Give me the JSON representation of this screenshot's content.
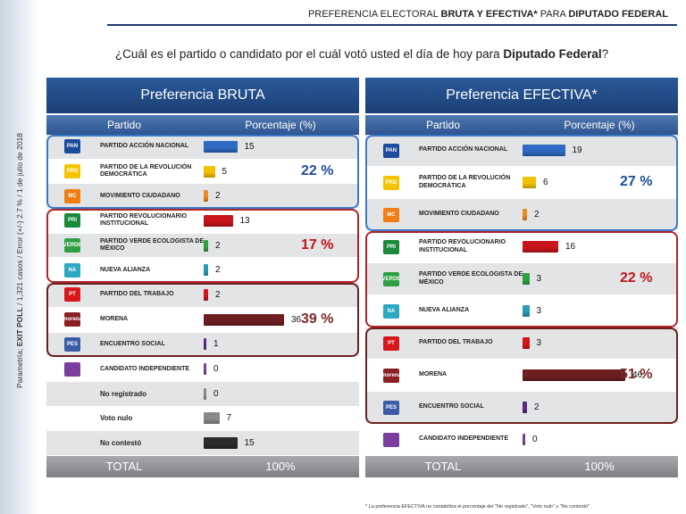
{
  "header": {
    "title_pre": "PREFERENCIA ELECTORAL ",
    "title_bold": "BRUTA Y EFECTIVA*",
    "title_mid": " PARA ",
    "title_bold2": "DIPUTADO FEDERAL"
  },
  "question": {
    "pre": "¿Cuál es el partido o candidato por el cuál votó usted el día de hoy para ",
    "bold": "Diputado Federal",
    "post": "?"
  },
  "side_note": {
    "pre": "Parametría; ",
    "bold": "EXIT POLL",
    "post": " / 1,321 casos / Error (+/-) 2.7 % / 1 de julio de 2018"
  },
  "colors": {
    "blue_box": "#3a7ac8",
    "red_box": "#b0232a",
    "maroon_box": "#6b1f1f",
    "pct_blue": "#1e4f9a",
    "pct_red": "#c0141b",
    "pct_maroon": "#7a2a2a"
  },
  "chart_data": [
    {
      "type": "bar",
      "title": "Preferencia BRUTA",
      "col_party": "Partido",
      "col_pct": "Porcentaje (%)",
      "xlim": [
        0,
        50
      ],
      "rows": [
        {
          "label": "PARTIDO ACCIÓN NACIONAL",
          "value": 15,
          "color": "#2f6bc4",
          "logo": "pan-logo-icon",
          "logo_text": "PAN",
          "logo_color": "#1c4c9c"
        },
        {
          "label": "PARTIDO DE LA REVOLUCIÓN DEMOCRÁTICA",
          "value": 5,
          "color": "#f2c200",
          "logo": "prd-logo-icon",
          "logo_text": "PRD",
          "logo_color": "#f4c400"
        },
        {
          "label": "MOVIMIENTO CIUDADANO",
          "value": 2,
          "color": "#f08a1c",
          "logo": "mc-logo-icon",
          "logo_text": "MC",
          "logo_color": "#f07e14"
        },
        {
          "label": "PARTIDO REVOLUCIONARIO INSTITUCIONAL",
          "value": 13,
          "color": "#c8151b",
          "logo": "pri-logo-icon",
          "logo_text": "PRI",
          "logo_color": "#1a8a3a"
        },
        {
          "label": "PARTIDO VERDE ECOLOGISTA DE MÉXICO",
          "value": 2,
          "color": "#2ea043",
          "logo": "pvem-logo-icon",
          "logo_text": "VERDE",
          "logo_color": "#2ea043"
        },
        {
          "label": "NUEVA ALIANZA",
          "value": 2,
          "color": "#2a9bb3",
          "logo": "panal-logo-icon",
          "logo_text": "NA",
          "logo_color": "#2aa9c0"
        },
        {
          "label": "PARTIDO DEL TRABAJO",
          "value": 2,
          "color": "#d0161c",
          "logo": "pt-logo-icon",
          "logo_text": "PT",
          "logo_color": "#d7171d"
        },
        {
          "label": "MORENA",
          "value": 36,
          "color": "#6e1f22",
          "logo": "morena-logo-icon",
          "logo_text": "morena",
          "logo_color": "#8b1f24"
        },
        {
          "label": "ENCUENTRO SOCIAL",
          "value": 1,
          "color": "#5a2a8a",
          "logo": "pes-logo-icon",
          "logo_text": "PES",
          "logo_color": "#3b5aa8"
        },
        {
          "label": "CANDIDATO INDEPENDIENTE",
          "value": 0,
          "color": "#7a3d99",
          "logo": "independiente-logo-icon",
          "logo_text": "",
          "logo_color": "#7b3e9c"
        },
        {
          "label": "No registrado",
          "value": 0,
          "color": "#888888",
          "logo": "",
          "logo_text": "",
          "logo_color": ""
        },
        {
          "label": "Voto nulo",
          "value": 7,
          "color": "#8a8a8a",
          "logo": "",
          "logo_text": "",
          "logo_color": ""
        },
        {
          "label": "No contestó",
          "value": 15,
          "color": "#2a2a2a",
          "logo": "",
          "logo_text": "",
          "logo_color": ""
        }
      ],
      "groups": [
        {
          "start": 0,
          "end": 2,
          "pct": "22 %",
          "color": "blue"
        },
        {
          "start": 3,
          "end": 5,
          "pct": "17 %",
          "color": "red"
        },
        {
          "start": 6,
          "end": 8,
          "pct": "39 %",
          "color": "maroon"
        }
      ],
      "total_label": "TOTAL",
      "total_value": "100%"
    },
    {
      "type": "bar",
      "title": "Preferencia EFECTIVA*",
      "col_party": "Partido",
      "col_pct": "Porcentaje (%)",
      "xlim": [
        0,
        50
      ],
      "rows": [
        {
          "label": "PARTIDO ACCIÓN NACIONAL",
          "value": 19,
          "color": "#2f6bc4",
          "logo": "pan-logo-icon",
          "logo_text": "PAN",
          "logo_color": "#1c4c9c"
        },
        {
          "label": "PARTIDO DE LA REVOLUCIÓN DEMOCRÁTICA",
          "value": 6,
          "color": "#f2c200",
          "logo": "prd-logo-icon",
          "logo_text": "PRD",
          "logo_color": "#f4c400"
        },
        {
          "label": "MOVIMIENTO CIUDADANO",
          "value": 2,
          "color": "#f08a1c",
          "logo": "mc-logo-icon",
          "logo_text": "MC",
          "logo_color": "#f07e14"
        },
        {
          "label": "PARTIDO REVOLUCIONARIO INSTITUCIONAL",
          "value": 16,
          "color": "#c8151b",
          "logo": "pri-logo-icon",
          "logo_text": "PRI",
          "logo_color": "#1a8a3a"
        },
        {
          "label": "PARTIDO VERDE ECOLOGISTA DE MÉXICO",
          "value": 3,
          "color": "#2ea043",
          "logo": "pvem-logo-icon",
          "logo_text": "VERDE",
          "logo_color": "#2ea043"
        },
        {
          "label": "NUEVA ALIANZA",
          "value": 3,
          "color": "#2a9bb3",
          "logo": "panal-logo-icon",
          "logo_text": "NA",
          "logo_color": "#2aa9c0"
        },
        {
          "label": "PARTIDO DEL TRABAJO",
          "value": 3,
          "color": "#d0161c",
          "logo": "pt-logo-icon",
          "logo_text": "PT",
          "logo_color": "#d7171d"
        },
        {
          "label": "MORENA",
          "value": 46,
          "color": "#6e1f22",
          "logo": "morena-logo-icon",
          "logo_text": "morena",
          "logo_color": "#8b1f24"
        },
        {
          "label": "ENCUENTRO SOCIAL",
          "value": 2,
          "color": "#5a2a8a",
          "logo": "pes-logo-icon",
          "logo_text": "PES",
          "logo_color": "#3b5aa8"
        },
        {
          "label": "CANDIDATO INDEPENDIENTE",
          "value": 0,
          "color": "#7a3d99",
          "logo": "independiente-logo-icon",
          "logo_text": "",
          "logo_color": "#7b3e9c"
        }
      ],
      "groups": [
        {
          "start": 0,
          "end": 2,
          "pct": "27 %",
          "color": "blue"
        },
        {
          "start": 3,
          "end": 5,
          "pct": "22 %",
          "color": "red"
        },
        {
          "start": 6,
          "end": 8,
          "pct": "51 %",
          "color": "maroon"
        }
      ],
      "total_label": "TOTAL",
      "total_value": "100%"
    }
  ],
  "footnote": "* La preferencia EFECTIVA no contabiliza el porcentaje del \"No registrado\", \"Voto nulo\" y \"No contestó\""
}
